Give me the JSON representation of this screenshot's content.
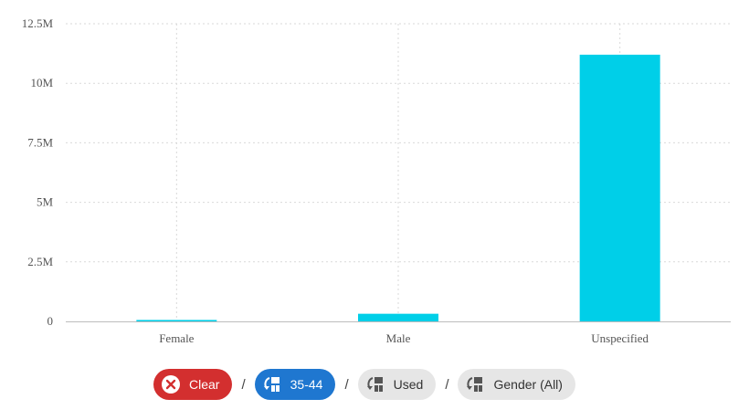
{
  "chart_data": {
    "type": "bar",
    "categories": [
      "Female",
      "Male",
      "Unspecified"
    ],
    "values": [
      60000,
      320000,
      11200000
    ],
    "ylim": [
      0,
      12500000
    ],
    "yticks": [
      0,
      2500000,
      5000000,
      7500000,
      10000000,
      12500000
    ],
    "ytick_labels": [
      "0",
      "2.5M",
      "5M",
      "7.5M",
      "10M",
      "12.5M"
    ],
    "grid": true,
    "bar_color": "#00cfe8"
  },
  "filters": {
    "clear_label": "Clear",
    "items": [
      {
        "label": "35-44",
        "icon": "drilldown-icon",
        "active": true
      },
      {
        "label": "Used",
        "icon": "drilldown-icon",
        "active": false
      },
      {
        "label": "Gender (All)",
        "icon": "drilldown-icon",
        "active": false
      }
    ],
    "separator": "/"
  },
  "colors": {
    "clear": "#d32f2f",
    "active": "#1f77d0",
    "inactive": "#e6e6e6"
  }
}
